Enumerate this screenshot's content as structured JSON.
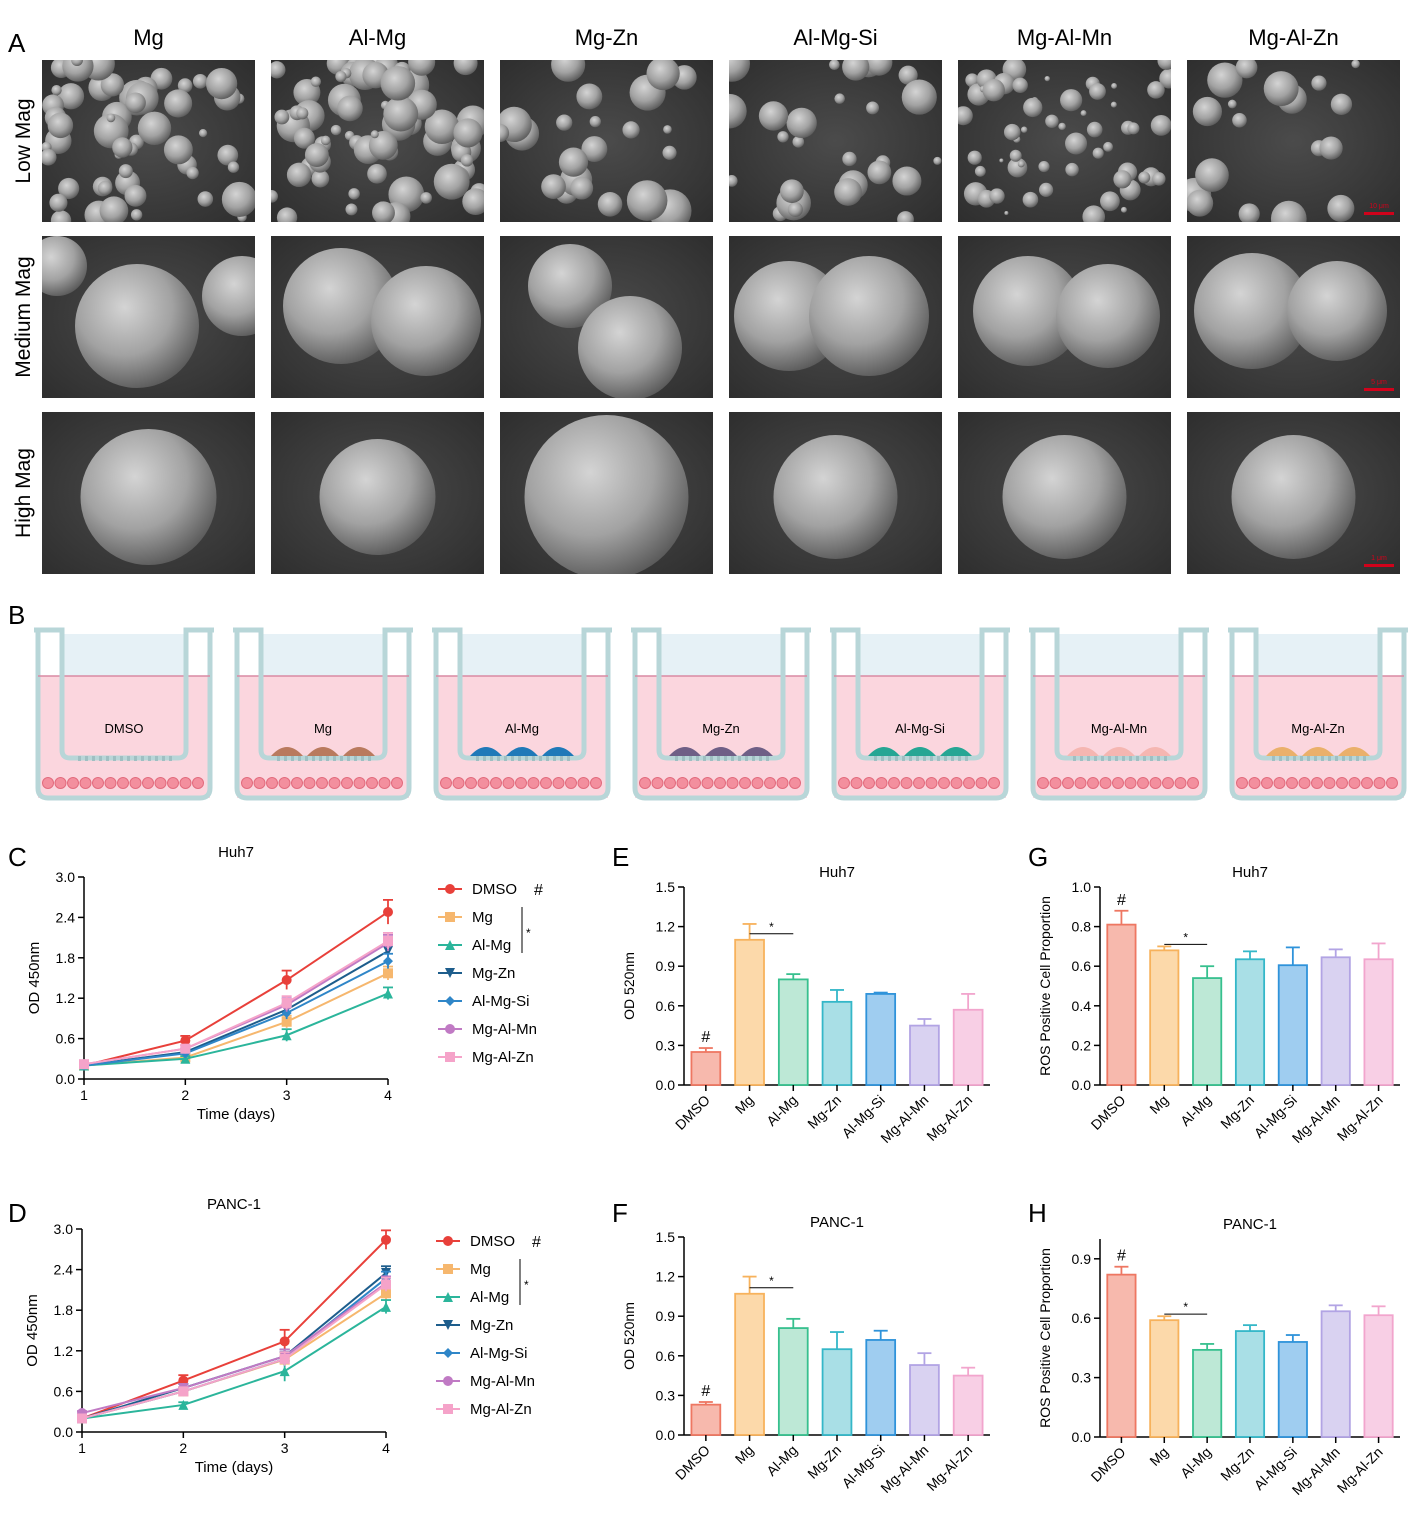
{
  "panel_letters": {
    "A": "A",
    "B": "B",
    "C": "C",
    "D": "D",
    "E": "E",
    "F": "F",
    "G": "G",
    "H": "H"
  },
  "colors": {
    "DMSO": "#e8403a",
    "Mg": "#f6b76e",
    "Al-Mg": "#2bb59b",
    "Mg-Zn": "#1d5d8c",
    "Al-Mg-Si": "#2f86c8",
    "Mg-Al-Mn": "#c07ac4",
    "Mg-Al-Zn": "#f5a3c9",
    "bar_fill": [
      "#f7b9ad",
      "#fcd9aa",
      "#bde8d6",
      "#a9dfe6",
      "#9fcdf0",
      "#d9d2f1",
      "#f8cfe5"
    ],
    "bar_stroke": [
      "#ee7762",
      "#f7b25c",
      "#37c08e",
      "#34b7c8",
      "#2f93da",
      "#b2a4e4",
      "#f2a5cd"
    ],
    "bead_colors": [
      "#b97a5e",
      "#1f79b8",
      "#6f5f86",
      "#26a694",
      "#f5b6b1",
      "#eab06b"
    ],
    "medium": "#fbd6de",
    "insert_top": "#e6f1f6",
    "well_border": "#b8d6d8",
    "cell": "#f38f9e"
  },
  "sem": {
    "columns": [
      "Mg",
      "Al-Mg",
      "Mg-Zn",
      "Al-Mg-Si",
      "Mg-Al-Mn",
      "Mg-Al-Zn"
    ],
    "rows": [
      "Low Mag",
      "Medium Mag",
      "High Mag"
    ],
    "scale_bars": [
      "10 μm",
      "5 μm",
      "1 μm"
    ]
  },
  "wells": {
    "labels": [
      "DMSO",
      "Mg",
      "Al-Mg",
      "Mg-Zn",
      "Al-Mg-Si",
      "Mg-Al-Mn",
      "Mg-Al-Zn"
    ]
  },
  "chart_data": [
    {
      "panel": "C",
      "type": "line",
      "title": "Huh7",
      "xlabel": "Time (days)",
      "ylabel": "OD 450nm",
      "x": [
        1,
        2,
        3,
        4
      ],
      "xticks": [
        "1",
        "2",
        "3",
        "4"
      ],
      "ylim": [
        0,
        3.0
      ],
      "yticks": [
        "0.0",
        "0.6",
        "1.2",
        "1.8",
        "2.4",
        "3.0"
      ],
      "series": [
        {
          "name": "DMSO",
          "values": [
            0.2,
            0.57,
            1.47,
            2.48
          ],
          "err": [
            0.04,
            0.07,
            0.14,
            0.18
          ],
          "marker": "circle"
        },
        {
          "name": "Mg",
          "values": [
            0.2,
            0.32,
            0.85,
            1.57
          ],
          "err": [
            0.03,
            0.05,
            0.09,
            0.1
          ],
          "marker": "square"
        },
        {
          "name": "Al-Mg",
          "values": [
            0.2,
            0.3,
            0.65,
            1.27
          ],
          "err": [
            0.03,
            0.04,
            0.09,
            0.09
          ],
          "marker": "triangle"
        },
        {
          "name": "Mg-Zn",
          "values": [
            0.2,
            0.4,
            1.03,
            1.9
          ],
          "err": [
            0.03,
            0.05,
            0.09,
            0.15
          ],
          "marker": "tri-down"
        },
        {
          "name": "Al-Mg-Si",
          "values": [
            0.2,
            0.38,
            0.98,
            1.75
          ],
          "err": [
            0.03,
            0.05,
            0.09,
            0.11
          ],
          "marker": "diamond"
        },
        {
          "name": "Mg-Al-Mn",
          "values": [
            0.22,
            0.45,
            1.1,
            2.02
          ],
          "err": [
            0.03,
            0.05,
            0.1,
            0.12
          ],
          "marker": "circle"
        },
        {
          "name": "Mg-Al-Zn",
          "values": [
            0.22,
            0.45,
            1.13,
            2.05
          ],
          "err": [
            0.03,
            0.05,
            0.1,
            0.12
          ],
          "marker": "square"
        }
      ],
      "legend": {
        "hash": "#",
        "star": "*"
      }
    },
    {
      "panel": "D",
      "type": "line",
      "title": "PANC-1",
      "xlabel": "Time (days)",
      "ylabel": "OD 450nm",
      "x": [
        1,
        2,
        3,
        4
      ],
      "xticks": [
        "1",
        "2",
        "3",
        "4"
      ],
      "ylim": [
        0,
        3.0
      ],
      "yticks": [
        "0.0",
        "0.6",
        "1.2",
        "1.8",
        "2.4",
        "3.0"
      ],
      "series": [
        {
          "name": "DMSO",
          "values": [
            0.2,
            0.76,
            1.34,
            2.84
          ],
          "err": [
            0.03,
            0.08,
            0.17,
            0.14
          ],
          "marker": "circle"
        },
        {
          "name": "Mg",
          "values": [
            0.2,
            0.6,
            1.07,
            2.05
          ],
          "err": [
            0.03,
            0.06,
            0.1,
            0.1
          ],
          "marker": "square"
        },
        {
          "name": "Al-Mg",
          "values": [
            0.2,
            0.4,
            0.9,
            1.85
          ],
          "err": [
            0.03,
            0.04,
            0.15,
            0.1
          ],
          "marker": "triangle"
        },
        {
          "name": "Mg-Zn",
          "values": [
            0.2,
            0.65,
            1.12,
            2.35
          ],
          "err": [
            0.03,
            0.06,
            0.1,
            0.1
          ],
          "marker": "tri-down"
        },
        {
          "name": "Al-Mg-Si",
          "values": [
            0.2,
            0.6,
            1.08,
            2.27
          ],
          "err": [
            0.03,
            0.06,
            0.1,
            0.1
          ],
          "marker": "diamond"
        },
        {
          "name": "Mg-Al-Mn",
          "values": [
            0.28,
            0.65,
            1.12,
            2.2
          ],
          "err": [
            0.03,
            0.06,
            0.1,
            0.1
          ],
          "marker": "circle"
        },
        {
          "name": "Mg-Al-Zn",
          "values": [
            0.2,
            0.6,
            1.08,
            2.18
          ],
          "err": [
            0.03,
            0.06,
            0.1,
            0.1
          ],
          "marker": "square"
        }
      ],
      "legend": {
        "hash": "#",
        "star": "*"
      }
    },
    {
      "panel": "E",
      "type": "bar",
      "title": "Huh7",
      "ylabel": "OD 520nm",
      "categories": [
        "DMSO",
        "Mg",
        "Al-Mg",
        "Mg-Zn",
        "Al-Mg-Si",
        "Mg-Al-Mn",
        "Mg-Al-Zn"
      ],
      "values": [
        0.25,
        1.1,
        0.8,
        0.63,
        0.69,
        0.45,
        0.57
      ],
      "err": [
        0.03,
        0.12,
        0.04,
        0.09,
        0.01,
        0.05,
        0.12
      ],
      "ylim": [
        0,
        1.5
      ],
      "yticks": [
        "0.0",
        "0.3",
        "0.6",
        "0.9",
        "1.2",
        "1.5"
      ],
      "annotations": {
        "hash": "#",
        "star": "*"
      }
    },
    {
      "panel": "F",
      "type": "bar",
      "title": "PANC-1",
      "ylabel": "OD 520nm",
      "categories": [
        "DMSO",
        "Mg",
        "Al-Mg",
        "Mg-Zn",
        "Al-Mg-Si",
        "Mg-Al-Mn",
        "Mg-Al-Zn"
      ],
      "values": [
        0.23,
        1.07,
        0.81,
        0.65,
        0.72,
        0.53,
        0.45
      ],
      "err": [
        0.02,
        0.13,
        0.07,
        0.13,
        0.07,
        0.09,
        0.06
      ],
      "ylim": [
        0,
        1.5
      ],
      "yticks": [
        "0.0",
        "0.3",
        "0.6",
        "0.9",
        "1.2",
        "1.5"
      ],
      "annotations": {
        "hash": "#",
        "star": "*"
      }
    },
    {
      "panel": "G",
      "type": "bar",
      "title": "Huh7",
      "ylabel": "ROS Positive Cell Proportion",
      "categories": [
        "DMSO",
        "Mg",
        "Al-Mg",
        "Mg-Zn",
        "Al-Mg-Si",
        "Mg-Al-Mn",
        "Mg-Al-Zn"
      ],
      "values": [
        0.81,
        0.68,
        0.54,
        0.635,
        0.605,
        0.645,
        0.635
      ],
      "err": [
        0.07,
        0.02,
        0.06,
        0.04,
        0.09,
        0.04,
        0.08
      ],
      "ylim": [
        0,
        1.0
      ],
      "yticks": [
        "0.0",
        "0.2",
        "0.4",
        "0.6",
        "0.8",
        "1.0"
      ],
      "annotations": {
        "hash": "#",
        "star": "*"
      }
    },
    {
      "panel": "H",
      "type": "bar",
      "title": "PANC-1",
      "ylabel": "ROS Positive Cell Proportion",
      "categories": [
        "DMSO",
        "Mg",
        "Al-Mg",
        "Mg-Zn",
        "Al-Mg-Si",
        "Mg-Al-Mn",
        "Mg-Al-Zn"
      ],
      "values": [
        0.82,
        0.59,
        0.44,
        0.535,
        0.48,
        0.635,
        0.615
      ],
      "err": [
        0.04,
        0.02,
        0.03,
        0.03,
        0.035,
        0.03,
        0.045
      ],
      "ylim": [
        0,
        1.0
      ],
      "yticks": [
        "0.0",
        "0.3",
        "0.6",
        "0.9"
      ],
      "annotations": {
        "hash": "#",
        "star": "*"
      }
    }
  ]
}
